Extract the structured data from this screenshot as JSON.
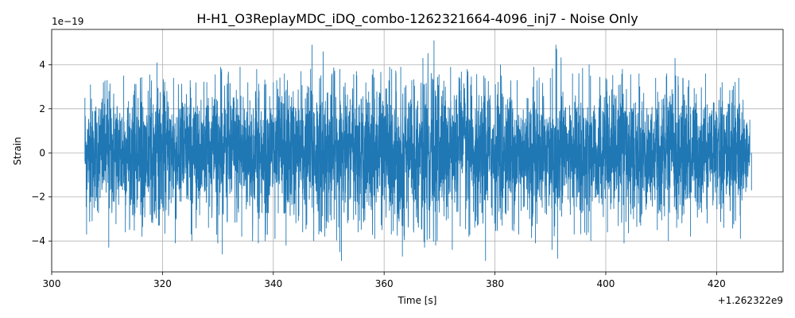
{
  "chart_data": {
    "type": "line",
    "title": "H-H1_O3ReplayMDC_iDQ_combo-1262321664-4096_inj7 - Noise Only",
    "xlabel": "Time [s]",
    "ylabel": "Strain",
    "x_offset_label": "+1.262322e9",
    "y_scale_label": "1e−19",
    "xlim": [
      300,
      432
    ],
    "ylim": [
      -5.4,
      5.6
    ],
    "x_ticks": [
      300,
      320,
      340,
      360,
      380,
      400,
      420
    ],
    "x_tick_labels": [
      "300",
      "320",
      "340",
      "360",
      "380",
      "400",
      "420"
    ],
    "y_ticks": [
      -4,
      -2,
      0,
      2,
      4
    ],
    "y_tick_labels": [
      "−4",
      "−2",
      "0",
      "2",
      "4"
    ],
    "grid": true,
    "series": [
      {
        "color": "#1f77b4",
        "x_range": [
          306,
          426
        ],
        "envelope_x": [
          306,
          307,
          310,
          313,
          316,
          319,
          322,
          325,
          328,
          330.5,
          334,
          337,
          340,
          342,
          345,
          347,
          349,
          352,
          355,
          358,
          361,
          363,
          365,
          367,
          369,
          372,
          375,
          378,
          381,
          384,
          387,
          390,
          391,
          394,
          397,
          400,
          403,
          406,
          409,
          411,
          412.5,
          415,
          418,
          421,
          424,
          426
        ],
        "envelope_max": [
          2.5,
          3.1,
          3.3,
          3.5,
          3.4,
          4.1,
          3.4,
          3.3,
          3.2,
          3.9,
          3.9,
          3.8,
          3.2,
          3.6,
          3.7,
          4.9,
          4.6,
          3.8,
          3.7,
          3.8,
          3.9,
          3.9,
          3.3,
          4.3,
          5.1,
          3.9,
          3.8,
          3.5,
          4.0,
          3.3,
          3.9,
          3.4,
          4.9,
          3.6,
          4.0,
          3.4,
          3.8,
          3.6,
          3.4,
          3.6,
          4.3,
          3.3,
          3.6,
          3.2,
          3.4,
          1.5
        ],
        "envelope_min": [
          -3.7,
          -3.1,
          -4.3,
          -3.6,
          -3.8,
          -3.3,
          -4.1,
          -4.0,
          -3.4,
          -4.6,
          -3.8,
          -4.1,
          -3.9,
          -4.2,
          -3.6,
          -4.0,
          -3.8,
          -4.9,
          -3.6,
          -3.9,
          -3.7,
          -4.7,
          -3.5,
          -4.3,
          -4.2,
          -4.4,
          -3.8,
          -4.9,
          -3.3,
          -3.7,
          -4.1,
          -4.4,
          -4.8,
          -3.7,
          -4.0,
          -3.6,
          -4.1,
          -3.3,
          -3.5,
          -4.0,
          -3.4,
          -3.8,
          -3.2,
          -3.4,
          -3.9,
          -1.7
        ]
      }
    ]
  }
}
